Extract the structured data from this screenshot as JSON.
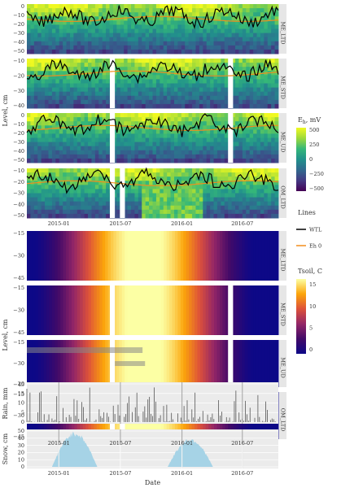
{
  "chart_data": {
    "type": "heatmap",
    "x_axis": {
      "label": "Date",
      "ticks": [
        "2015-01",
        "2015-07",
        "2016-01",
        "2016-07"
      ]
    },
    "groups": [
      {
        "ylabel": "Level, cm",
        "variable_label": "Eh, mV",
        "variable_main": "E",
        "variable_sub": "h",
        "variable_unit": ", mV",
        "colorbar_ticks": [
          "500",
          "250",
          "0",
          "−250",
          "−500"
        ],
        "panels": [
          {
            "name": "ME_LTD",
            "yticks": [
              "0",
              "−10",
              "−20",
              "−30",
              "−40",
              "−50"
            ]
          },
          {
            "name": "ME_STD",
            "yticks": [
              "−10",
              "−20",
              "−30",
              "−40"
            ]
          },
          {
            "name": "ME_UD",
            "yticks": [
              "0",
              "−10",
              "−20",
              "−30",
              "−40",
              "−50"
            ]
          },
          {
            "name": "OM_LTD",
            "yticks": [
              "−10",
              "−20",
              "−30",
              "−40",
              "−50"
            ]
          }
        ]
      },
      {
        "ylabel": "Level, cm",
        "variable_label": "Tsoil, C",
        "colorbar_ticks": [
          "15",
          "10",
          "5",
          "0"
        ],
        "panels": [
          {
            "name": "ME_LTD",
            "yticks": [
              "−15",
              "−30",
              "−45"
            ]
          },
          {
            "name": "ME_STD",
            "yticks": [
              "−15",
              "−30",
              "−45"
            ]
          },
          {
            "name": "ME_UD",
            "yticks": [
              "−15",
              "−30",
              "−45"
            ]
          },
          {
            "name": "OM_LTD",
            "yticks": [
              "−15",
              "−30",
              "−45"
            ]
          }
        ]
      }
    ],
    "lines_legend": {
      "title": "Lines",
      "entries": [
        {
          "name": "WTL",
          "color": "#000000"
        },
        {
          "name": "Eh 0",
          "color": "#f28e1c"
        }
      ]
    },
    "rain": {
      "ylabel": "Rain, mm",
      "yticks": [
        "20",
        "15",
        "10",
        "5",
        "0"
      ],
      "ylim": [
        0,
        22
      ]
    },
    "snow": {
      "ylabel": "Snow, cm",
      "yticks": [
        "50",
        "40",
        "30",
        "20",
        "10",
        "0"
      ],
      "ylim": [
        0,
        55
      ]
    }
  },
  "colors": {
    "eh_scale": [
      "#f0f921",
      "#9dd93b",
      "#35b779",
      "#21918c",
      "#31688e",
      "#443983",
      "#440154"
    ],
    "tsoil_scale": [
      "#fcffa4",
      "#fca50a",
      "#dd513a",
      "#932667",
      "#420a68",
      "#0d0887"
    ],
    "wtl_line": "#000000",
    "eh0_line": "#f28e1c",
    "snow_fill": "#a6d3e6",
    "rain_bars": "#555555",
    "strip_bg": "#e6e6e6",
    "gap_fill": "#ffffff"
  }
}
